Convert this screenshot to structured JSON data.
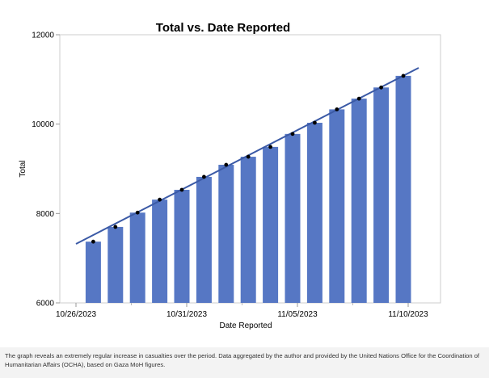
{
  "chart_data": {
    "type": "bar",
    "title": "Total vs. Date Reported",
    "xlabel": "Date Reported",
    "ylabel": "Total",
    "ylim": [
      6000,
      12000
    ],
    "yticks": [
      "6000",
      "8000",
      "10000",
      "12000"
    ],
    "xticks": [
      "10/26/2023",
      "10/31/2023",
      "11/05/2023",
      "11/10/2023"
    ],
    "categories": [
      "10/27/2023",
      "10/28/2023",
      "10/29/2023",
      "10/30/2023",
      "10/31/2023",
      "11/01/2023",
      "11/02/2023",
      "11/03/2023",
      "11/04/2023",
      "11/05/2023",
      "11/06/2023",
      "11/07/2023",
      "11/08/2023",
      "11/09/2023",
      "11/10/2023"
    ],
    "values": [
      7370,
      7700,
      8020,
      8310,
      8530,
      8820,
      9090,
      9270,
      9490,
      9780,
      10030,
      10330,
      10570,
      10820,
      11080
    ],
    "trend_line": {
      "start": [
        "10/26/2023",
        7320
      ],
      "end": [
        "11/10/2023",
        11150
      ]
    },
    "bar_color": "#5677c4",
    "line_color": "#3b5aa6",
    "point_color": "#000000",
    "grid": false
  },
  "caption": "The graph reveals an extremely regular increase in casualties over the period. Data aggregated by the author and provided by the United Nations Office for the Coordination of Humanitarian Affairs (OCHA), based on Gaza MoH figures."
}
